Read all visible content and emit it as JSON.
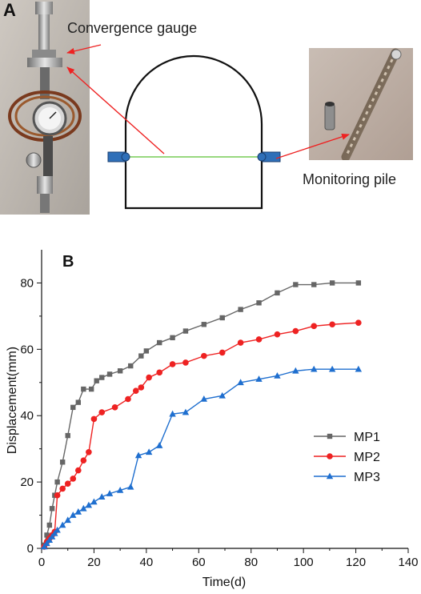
{
  "panel_a": {
    "letter": "A",
    "label_gauge": "Convergence gauge",
    "label_pile": "Monitoring pile"
  },
  "colors": {
    "arrow": "#ee2222",
    "baseline": "#77cc55",
    "tunnel": "#111111",
    "pile_marker": "#2f6fb8"
  },
  "chart_data": {
    "type": "line",
    "panel_letter": "B",
    "xlabel": "Time(d)",
    "ylabel": "Displacement(mm)",
    "xlim": [
      0,
      140
    ],
    "ylim": [
      0,
      90
    ],
    "xticks": [
      0,
      20,
      40,
      60,
      80,
      100,
      120,
      140
    ],
    "yticks": [
      0,
      20,
      40,
      60,
      80
    ],
    "legend_position": "bottom-right",
    "series": [
      {
        "name": "MP1",
        "color": "#666666",
        "marker": "square",
        "x": [
          1,
          2,
          3,
          4,
          5,
          6,
          8,
          10,
          12,
          14,
          16,
          19,
          21,
          23,
          26,
          30,
          34,
          38,
          40,
          45,
          50,
          55,
          62,
          69,
          76,
          83,
          90,
          97,
          104,
          111,
          121
        ],
        "y": [
          1,
          4,
          7,
          12,
          16,
          20,
          26,
          34,
          42.5,
          44,
          48,
          48,
          50.5,
          51.5,
          52.5,
          53.5,
          55,
          58,
          59.5,
          62,
          63.5,
          65.5,
          67.5,
          69.5,
          72,
          74,
          77,
          79.5,
          79.5,
          80,
          80
        ]
      },
      {
        "name": "MP2",
        "color": "#ee2222",
        "marker": "circle",
        "x": [
          1,
          2,
          3,
          4,
          5,
          6,
          8,
          10,
          12,
          14,
          16,
          18,
          20,
          23,
          28,
          33,
          36,
          38,
          41,
          45,
          50,
          55,
          62,
          69,
          76,
          83,
          90,
          97,
          104,
          111,
          121
        ],
        "y": [
          0.5,
          2,
          3,
          4,
          5,
          16,
          18,
          19.5,
          21,
          23.5,
          26.5,
          29,
          39,
          41,
          42.5,
          45,
          47.5,
          48.5,
          51.5,
          53,
          55.5,
          56,
          58,
          59,
          62,
          63,
          64.5,
          65.5,
          67,
          67.5,
          68
        ]
      },
      {
        "name": "MP3",
        "color": "#1f6fcf",
        "marker": "triangle",
        "x": [
          1,
          2,
          3,
          4,
          5,
          6,
          8,
          10,
          12,
          14,
          16,
          18,
          20,
          23,
          26,
          30,
          34,
          37,
          41,
          45,
          50,
          55,
          62,
          69,
          76,
          83,
          90,
          97,
          104,
          111,
          121
        ],
        "y": [
          0.5,
          1.5,
          2.5,
          3.5,
          4.5,
          5.5,
          7,
          8.5,
          10,
          11,
          12,
          13,
          14,
          15.5,
          16.5,
          17.5,
          18.5,
          28,
          29,
          31,
          40.5,
          41,
          45,
          46,
          50,
          51,
          52,
          53.5,
          54,
          54,
          54
        ]
      }
    ]
  }
}
